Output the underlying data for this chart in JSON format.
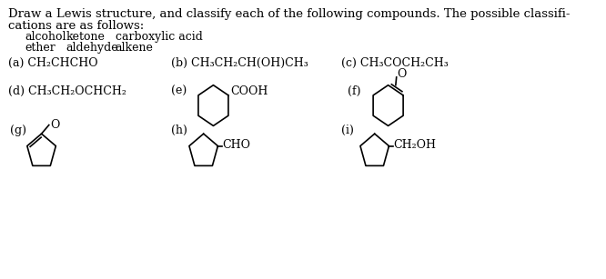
{
  "title_line1": "Draw a Lewis structure, and classify each of the following compounds. The possible classifi-",
  "title_line2": "cations are as follows:",
  "row1_col1": "alcohol",
  "row1_col2": "ketone",
  "row1_col3": "carboxylic acid",
  "row2_col1": "ether",
  "row2_col2": "aldehyde",
  "row2_col3": "alkene",
  "a_text": "(a) CH₂CHCHO",
  "b_text": "(b) CH₃CH₂CH(OH)CH₃",
  "c_text": "(c) CH₃COCH₂CH₃",
  "d_text": "(d) CH₃CH₂OCHCH₂",
  "e_label": "(e)",
  "e_group": "COOH",
  "f_label": "(f)",
  "f_group": "O",
  "g_label": "(g)",
  "g_group": "O",
  "h_label": "(h)",
  "h_group": "CHO",
  "i_label": "(i)",
  "i_group": "CH₂OH",
  "bg_color": "#ffffff",
  "text_color": "#000000",
  "font_size_body": 9.0,
  "font_size_title": 9.5,
  "line_color": "#000000"
}
